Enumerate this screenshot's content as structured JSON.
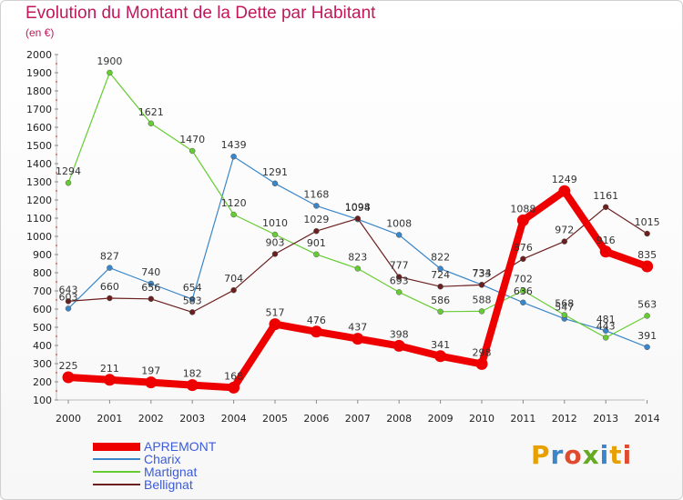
{
  "title": "Evolution du Montant de la Dette par Habitant",
  "subtitle": "(en €)",
  "logo_text": "Proxiti",
  "chart_data": {
    "type": "line",
    "title": "Evolution du Montant de la Dette par Habitant",
    "ylabel": "(en €)",
    "xlabel": "",
    "ylim": [
      100,
      2000
    ],
    "yticks": [
      100,
      200,
      300,
      400,
      500,
      600,
      700,
      800,
      900,
      1000,
      1100,
      1200,
      1300,
      1400,
      1500,
      1600,
      1700,
      1800,
      1900,
      2000
    ],
    "categories": [
      "2000",
      "2001",
      "2002",
      "2003",
      "2004",
      "2005",
      "2006",
      "2007",
      "2008",
      "2009",
      "2010",
      "2011",
      "2012",
      "2013",
      "2014"
    ],
    "grid": false,
    "legend_position": "bottom-left",
    "series": [
      {
        "name": "APREMONT",
        "color": "#ee0000",
        "values": [
          225,
          211,
          197,
          182,
          168,
          517,
          476,
          437,
          398,
          341,
          298,
          1088,
          1249,
          916,
          835
        ]
      },
      {
        "name": "Charix",
        "color": "#3a86c8",
        "values": [
          603,
          827,
          740,
          654,
          1439,
          1291,
          1168,
          1094,
          1008,
          822,
          734,
          636,
          547,
          481,
          391
        ]
      },
      {
        "name": "Martignat",
        "color": "#66cc33",
        "values": [
          1294,
          1900,
          1621,
          1470,
          1120,
          1010,
          901,
          823,
          693,
          586,
          588,
          702,
          568,
          443,
          563
        ]
      },
      {
        "name": "Bellignat",
        "color": "#6b1f1f",
        "values": [
          643,
          660,
          656,
          583,
          704,
          903,
          1029,
          1098,
          777,
          724,
          733,
          876,
          972,
          1161,
          1015
        ]
      }
    ]
  }
}
